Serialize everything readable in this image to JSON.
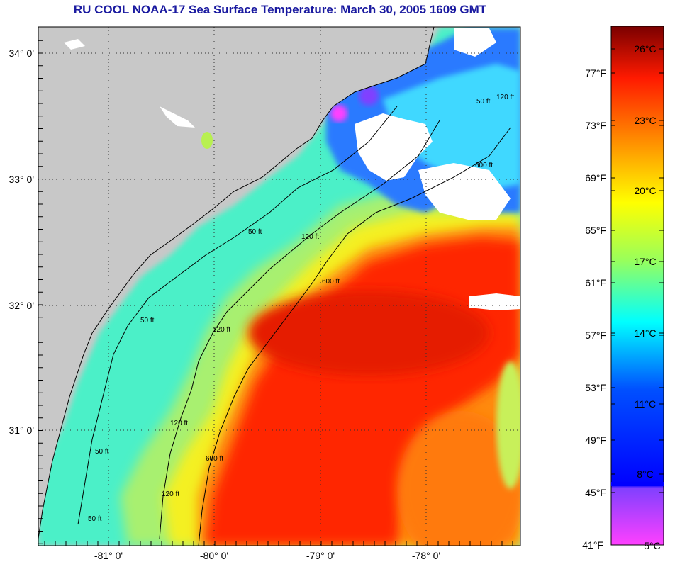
{
  "title": "RU COOL  NOAA-17  Sea Surface Temperature:  March 30, 2005 1609 GMT",
  "axes": {
    "lat_labels": [
      "34° 0'",
      "33° 0'",
      "32° 0'",
      "31° 0'"
    ],
    "lon_labels": [
      "-81° 0'",
      "-80° 0'",
      "-79° 0'",
      "-78° 0'"
    ]
  },
  "contours": {
    "depth_50": "50 ft",
    "depth_120": "120 ft",
    "depth_600": "600 ft"
  },
  "colorbar": {
    "fahrenheit_labels": [
      "77°F",
      "73°F",
      "69°F",
      "65°F",
      "61°F",
      "57°F",
      "53°F",
      "49°F",
      "45°F",
      "41°F"
    ],
    "celsius_labels": [
      "26°C",
      "23°C",
      "20°C",
      "17°C",
      "14°C",
      "11°C",
      "8°C",
      "5°C"
    ],
    "colors": {
      "top": "#7a0000",
      "red": "#ff1a00",
      "orange": "#ff8c00",
      "yellow": "#ffff00",
      "green": "#9aff5a",
      "cyan": "#00ffff",
      "blue": "#0050ff",
      "dark_blue": "#0000ff",
      "purple": "#8040ff",
      "magenta": "#ff40ff"
    }
  },
  "land_color": "#c8c8c8"
}
